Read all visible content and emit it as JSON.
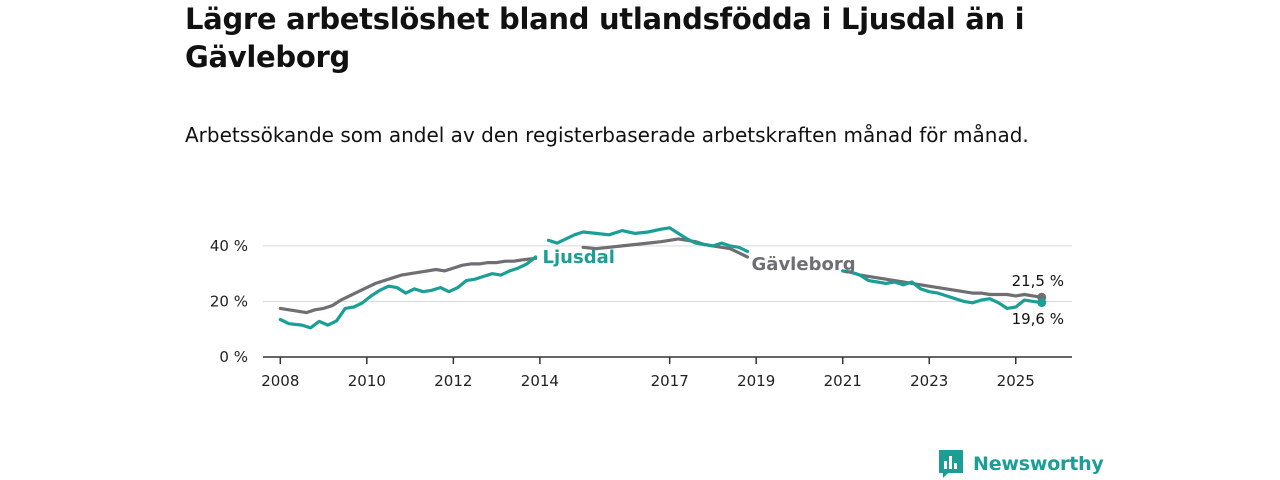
{
  "chart_data": {
    "type": "line",
    "title": "Lägre arbetslöshet bland utlandsfödda i Ljusdal än i Gävleborg",
    "subtitle": "Arbetssökande som andel av den registerbaserade arbetskraften månad för månad.",
    "ylim": [
      0,
      45
    ],
    "xlim": [
      2007.6,
      2026.3
    ],
    "y_ticks": [
      0,
      20,
      40
    ],
    "y_tick_labels": [
      "0 %",
      "20 %",
      "40 %"
    ],
    "x_ticks": [
      2008,
      2010,
      2012,
      2014,
      2017,
      2019,
      2021,
      2023,
      2025
    ],
    "x_tick_labels": [
      "2008",
      "2010",
      "2012",
      "2014",
      "2017",
      "2019",
      "2021",
      "2023",
      "2025"
    ],
    "grid": "horizontal",
    "series": [
      {
        "name": "Ljusdal",
        "color": "#1a9e95",
        "segments": [
          [
            [
              2008.0,
              13.5
            ],
            [
              2008.2,
              12.0
            ],
            [
              2008.5,
              11.5
            ],
            [
              2008.7,
              10.5
            ],
            [
              2008.9,
              12.8
            ],
            [
              2009.1,
              11.5
            ],
            [
              2009.3,
              13.0
            ],
            [
              2009.5,
              17.5
            ],
            [
              2009.7,
              18.0
            ],
            [
              2009.9,
              19.5
            ],
            [
              2010.1,
              22.0
            ],
            [
              2010.3,
              24.0
            ],
            [
              2010.5,
              25.5
            ],
            [
              2010.7,
              25.0
            ],
            [
              2010.9,
              23.0
            ],
            [
              2011.1,
              24.5
            ],
            [
              2011.3,
              23.5
            ],
            [
              2011.5,
              24.0
            ],
            [
              2011.7,
              25.0
            ],
            [
              2011.9,
              23.5
            ],
            [
              2012.1,
              25.0
            ],
            [
              2012.3,
              27.5
            ],
            [
              2012.5,
              28.0
            ],
            [
              2012.7,
              29.0
            ],
            [
              2012.9,
              30.0
            ],
            [
              2013.1,
              29.5
            ],
            [
              2013.3,
              31.0
            ],
            [
              2013.5,
              32.0
            ],
            [
              2013.7,
              33.5
            ],
            [
              2013.9,
              36.0
            ]
          ],
          [
            [
              2014.2,
              42.0
            ],
            [
              2014.4,
              41.0
            ],
            [
              2014.6,
              42.5
            ],
            [
              2014.8,
              44.0
            ],
            [
              2015.0,
              45.0
            ],
            [
              2015.3,
              44.5
            ],
            [
              2015.6,
              44.0
            ],
            [
              2015.9,
              45.5
            ],
            [
              2016.2,
              44.5
            ],
            [
              2016.5,
              45.0
            ],
            [
              2016.8,
              46.0
            ],
            [
              2017.0,
              46.5
            ],
            [
              2017.2,
              44.5
            ],
            [
              2017.4,
              42.5
            ],
            [
              2017.6,
              41.0
            ],
            [
              2017.8,
              40.5
            ],
            [
              2018.0,
              40.0
            ],
            [
              2018.2,
              41.0
            ],
            [
              2018.4,
              40.0
            ],
            [
              2018.6,
              39.5
            ],
            [
              2018.8,
              38.0
            ]
          ],
          [
            [
              2021.0,
              31.0
            ],
            [
              2021.2,
              30.5
            ],
            [
              2021.4,
              29.5
            ],
            [
              2021.6,
              27.5
            ],
            [
              2021.8,
              27.0
            ],
            [
              2022.0,
              26.5
            ],
            [
              2022.2,
              27.0
            ],
            [
              2022.4,
              26.0
            ],
            [
              2022.6,
              27.0
            ],
            [
              2022.8,
              24.5
            ],
            [
              2023.0,
              23.5
            ],
            [
              2023.2,
              23.0
            ],
            [
              2023.4,
              22.0
            ],
            [
              2023.6,
              21.0
            ],
            [
              2023.8,
              20.0
            ],
            [
              2024.0,
              19.5
            ],
            [
              2024.2,
              20.5
            ],
            [
              2024.4,
              21.0
            ],
            [
              2024.6,
              19.5
            ],
            [
              2024.8,
              17.5
            ],
            [
              2025.0,
              18.0
            ],
            [
              2025.2,
              20.5
            ],
            [
              2025.4,
              20.0
            ],
            [
              2025.6,
              19.6
            ]
          ]
        ],
        "end_value_label": "19,6 %"
      },
      {
        "name": "Gävleborg",
        "color": "#6e6e73",
        "segments": [
          [
            [
              2008.0,
              17.5
            ],
            [
              2008.2,
              17.0
            ],
            [
              2008.4,
              16.5
            ],
            [
              2008.6,
              16.0
            ],
            [
              2008.8,
              17.0
            ],
            [
              2009.0,
              17.5
            ],
            [
              2009.2,
              18.5
            ],
            [
              2009.4,
              20.5
            ],
            [
              2009.6,
              22.0
            ],
            [
              2009.8,
              23.5
            ],
            [
              2010.0,
              25.0
            ],
            [
              2010.2,
              26.5
            ],
            [
              2010.4,
              27.5
            ],
            [
              2010.6,
              28.5
            ],
            [
              2010.8,
              29.5
            ],
            [
              2011.0,
              30.0
            ],
            [
              2011.2,
              30.5
            ],
            [
              2011.4,
              31.0
            ],
            [
              2011.6,
              31.5
            ],
            [
              2011.8,
              31.0
            ],
            [
              2012.0,
              32.0
            ],
            [
              2012.2,
              33.0
            ],
            [
              2012.4,
              33.5
            ],
            [
              2012.6,
              33.5
            ],
            [
              2012.8,
              34.0
            ],
            [
              2013.0,
              34.0
            ],
            [
              2013.2,
              34.5
            ],
            [
              2013.4,
              34.5
            ],
            [
              2013.6,
              35.0
            ],
            [
              2013.9,
              35.5
            ]
          ],
          [
            [
              2015.0,
              39.5
            ],
            [
              2015.3,
              39.0
            ],
            [
              2015.6,
              39.5
            ],
            [
              2015.9,
              40.0
            ],
            [
              2016.2,
              40.5
            ],
            [
              2016.5,
              41.0
            ],
            [
              2016.8,
              41.5
            ],
            [
              2017.0,
              42.0
            ],
            [
              2017.2,
              42.5
            ],
            [
              2017.4,
              42.0
            ],
            [
              2017.6,
              41.5
            ],
            [
              2017.8,
              40.5
            ],
            [
              2018.0,
              40.0
            ],
            [
              2018.2,
              39.5
            ],
            [
              2018.4,
              39.0
            ],
            [
              2018.6,
              37.5
            ],
            [
              2018.8,
              36.0
            ]
          ],
          [
            [
              2021.0,
              31.0
            ],
            [
              2021.2,
              30.5
            ],
            [
              2021.4,
              29.5
            ],
            [
              2021.6,
              29.0
            ],
            [
              2021.8,
              28.5
            ],
            [
              2022.0,
              28.0
            ],
            [
              2022.2,
              27.5
            ],
            [
              2022.4,
              27.0
            ],
            [
              2022.6,
              26.5
            ],
            [
              2022.8,
              26.0
            ],
            [
              2023.0,
              25.5
            ],
            [
              2023.2,
              25.0
            ],
            [
              2023.4,
              24.5
            ],
            [
              2023.6,
              24.0
            ],
            [
              2023.8,
              23.5
            ],
            [
              2024.0,
              23.0
            ],
            [
              2024.2,
              23.0
            ],
            [
              2024.4,
              22.5
            ],
            [
              2024.6,
              22.5
            ],
            [
              2024.8,
              22.5
            ],
            [
              2025.0,
              22.0
            ],
            [
              2025.2,
              22.5
            ],
            [
              2025.4,
              22.0
            ],
            [
              2025.6,
              21.5
            ]
          ]
        ],
        "end_value_label": "21,5 %"
      }
    ]
  },
  "brand": {
    "name": "Newsworthy",
    "logo_icon": "bar-chart-speech-bubble-icon",
    "color": "#1a9e95"
  }
}
